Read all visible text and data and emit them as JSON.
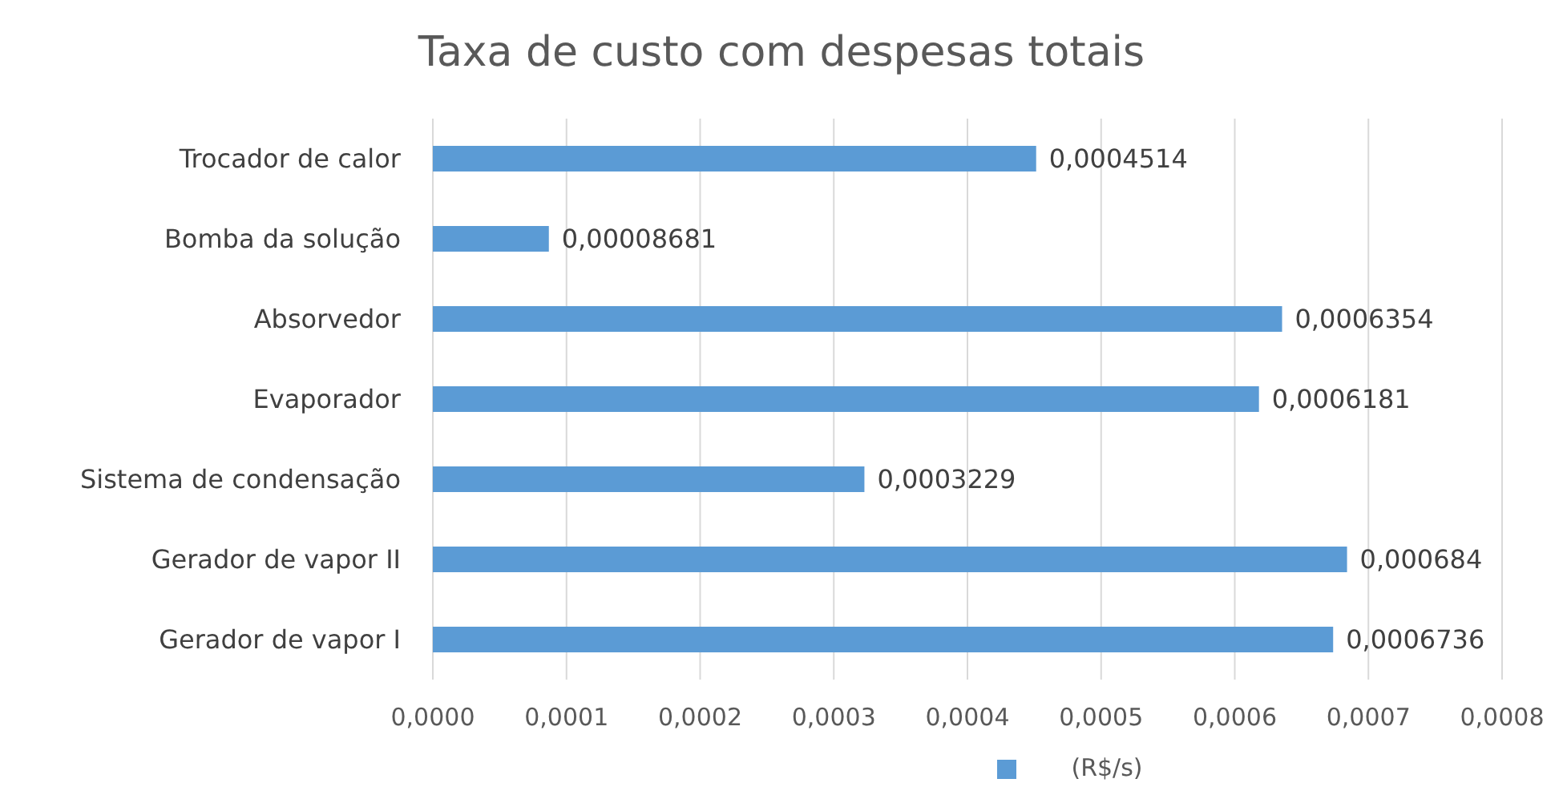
{
  "chart_data": {
    "type": "bar",
    "orientation": "horizontal",
    "title": "Taxa de custo com despesas totais",
    "categories": [
      "Trocador de calor",
      "Bomba da solução",
      "Absorvedor",
      "Evaporador",
      "Sistema de condensação",
      "Gerador de vapor II",
      "Gerador de vapor I"
    ],
    "series": [
      {
        "name": "(R$/s)",
        "color": "#5b9bd5",
        "values": [
          0.0004514,
          8.681e-05,
          0.0006354,
          0.0006181,
          0.0003229,
          0.000684,
          0.0006736
        ],
        "value_labels": [
          "0,0004514",
          "0,00008681",
          "0,0006354",
          "0,0006181",
          "0,0003229",
          "0,000684",
          "0,0006736"
        ]
      }
    ],
    "xlim": [
      0,
      0.0008
    ],
    "xticks": [
      {
        "value": 0,
        "label": "0,0000"
      },
      {
        "value": 0.0001,
        "label": "0,0001"
      },
      {
        "value": 0.0002,
        "label": "0,0002"
      },
      {
        "value": 0.0003,
        "label": "0,0003"
      },
      {
        "value": 0.0004,
        "label": "0,0004"
      },
      {
        "value": 0.0005,
        "label": "0,0005"
      },
      {
        "value": 0.0006,
        "label": "0,0006"
      },
      {
        "value": 0.0007,
        "label": "0,0007"
      },
      {
        "value": 0.0008,
        "label": "0,0008"
      }
    ],
    "grid": "x",
    "legend": "bottom"
  }
}
